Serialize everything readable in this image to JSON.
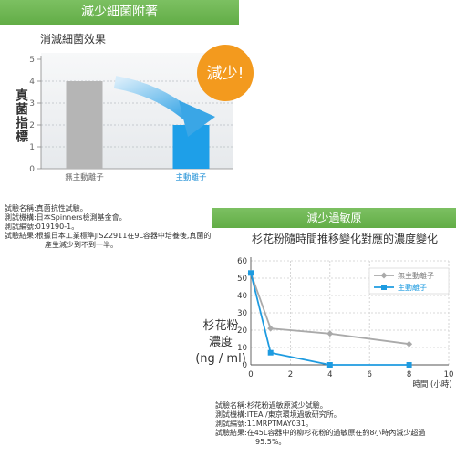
{
  "sections": {
    "bacteria": {
      "header": "減少細菌附著",
      "badge": "減少!",
      "notes": [
        "試驗名稱:真菌抗性試驗。",
        "測試機構:日本Spinners檢測基金會。",
        "測試編號:019190-1。",
        "試驗結果:根據日本工業標準JISZ2911在9L容器中培養後,真菌的",
        "產生減少到不到一半。"
      ]
    },
    "allergen": {
      "header": "減少過敏原",
      "notes": [
        "試驗名稱:杉花粉過敏原減少試驗。",
        "測試機構:ITEA /東京環境過敏研究所。",
        "測試編號:11MRPTMAY031。",
        "試驗結果:在45L容器中的柳杉花粉的過敏原在約8小時內減少超過",
        "95.5%。"
      ]
    }
  },
  "colors": {
    "header_green": "#6cb74d",
    "gray_series": "#b3b3b3",
    "blue_series": "#1e9be0",
    "badge_orange": "#f39a1e"
  },
  "chart_data": [
    {
      "type": "bar",
      "title": "消滅細菌效果",
      "ylabel": "真菌指標",
      "categories": [
        "無主動離子",
        "主動離子"
      ],
      "values": [
        4,
        2
      ],
      "colors": [
        "#b5b5b5",
        "#1e9fe8"
      ],
      "label_colors": [
        "#666666",
        "#1e8fd6"
      ],
      "ylim": [
        0,
        5
      ],
      "yticks": [
        0,
        1,
        2,
        3,
        4,
        5
      ],
      "grid": true
    },
    {
      "type": "line",
      "title": "杉花粉隨時間推移變化對應的濃度變化",
      "ylabel_lines": [
        "杉花粉",
        "濃度",
        "(ng / ml)"
      ],
      "xlabel": "時間 (小時)",
      "xlim": [
        0,
        10
      ],
      "ylim": [
        0,
        60
      ],
      "xticks": [
        0,
        2,
        4,
        6,
        8,
        10
      ],
      "yticks": [
        0,
        10,
        20,
        30,
        40,
        50,
        60
      ],
      "grid": true,
      "legend": "top-right",
      "series": [
        {
          "name": "無主動離子",
          "color": "#aaaaaa",
          "marker": "diamond",
          "x": [
            0,
            1,
            4,
            8
          ],
          "y": [
            53,
            21,
            18,
            12
          ]
        },
        {
          "name": "主動離子",
          "color": "#1e9be0",
          "marker": "square",
          "x": [
            0,
            1,
            4,
            8
          ],
          "y": [
            53,
            7,
            0,
            0
          ]
        }
      ]
    }
  ]
}
